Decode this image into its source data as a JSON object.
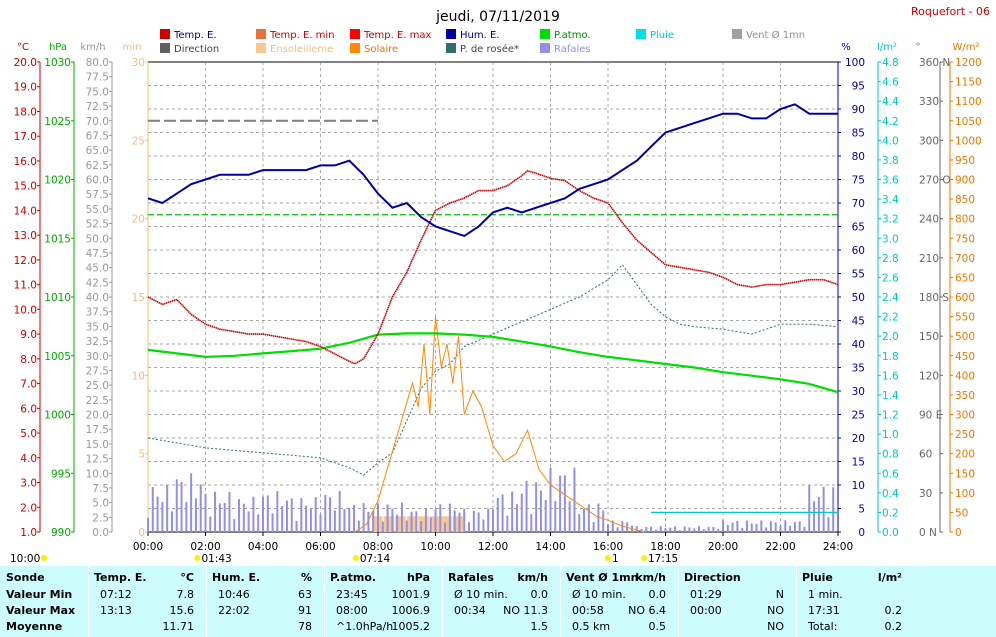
{
  "title": "jeudi, 07/11/2019",
  "station": "Roquefort - 06",
  "legend": [
    {
      "label": "Temp. E.",
      "color": "#cc0000"
    },
    {
      "label": "Temp. E. min",
      "color": "#e8703a"
    },
    {
      "label": "Temp. E. max",
      "color": "#ff0000"
    },
    {
      "label": "Hum. E.",
      "color": "#0000a0"
    },
    {
      "label": "P.atmo.",
      "color": "#00dd00"
    },
    {
      "label": "Pluie",
      "color": "#00e0e0"
    },
    {
      "label": "Vent Ø 1mn",
      "color": "#a0a0a0"
    },
    {
      "label": "Direction",
      "color": "#606060"
    },
    {
      "label": "Ensoleilleme",
      "color": "#f8c890"
    },
    {
      "label": "Solaire",
      "color": "#ff8800"
    },
    {
      "label": "P. de rosée*",
      "color": "#2e6e6e"
    },
    {
      "label": "Rafales",
      "color": "#9090e8"
    }
  ],
  "axis_units": {
    "temp": "°C",
    "pressure": "hPa",
    "wind": "km/h",
    "sun_min": "min",
    "hum": "%",
    "rain": "l/m²",
    "dir": "°",
    "solar": "W/m²"
  },
  "axis_ticks": {
    "temp": [
      "1.0",
      "2.0",
      "3.0",
      "4.0",
      "5.0",
      "6.0",
      "7.0",
      "8.0",
      "9.0",
      "10.0",
      "11.0",
      "12.0",
      "13.0",
      "14.0",
      "15.0",
      "16.0",
      "17.0",
      "18.0",
      "19.0",
      "20.0"
    ],
    "pressure": [
      "990",
      "995",
      "1000",
      "1005",
      "1010",
      "1015",
      "1020",
      "1025",
      "1030"
    ],
    "wind": [
      "0.0",
      "2.5",
      "5.0",
      "7.5",
      "10.0",
      "12.5",
      "15.0",
      "17.5",
      "20.0",
      "22.5",
      "25.0",
      "27.5",
      "30.0",
      "32.5",
      "35.0",
      "37.5",
      "40.0",
      "42.5",
      "45.0",
      "47.5",
      "50.0",
      "52.5",
      "55.0",
      "57.5",
      "60.0",
      "62.5",
      "65.0",
      "67.5",
      "70.0",
      "72.5",
      "75.0",
      "77.5",
      "80.0"
    ],
    "sun_min": [
      "0",
      "5",
      "10",
      "15",
      "20",
      "25",
      "30"
    ],
    "hum": [
      "0",
      "5",
      "10",
      "15",
      "20",
      "25",
      "30",
      "35",
      "40",
      "45",
      "50",
      "55",
      "60",
      "65",
      "70",
      "75",
      "80",
      "85",
      "90",
      "95",
      "100"
    ],
    "rain": [
      "0.0",
      "0.2",
      "0.4",
      "0.6",
      "0.8",
      "1.0",
      "1.2",
      "1.4",
      "1.6",
      "1.8",
      "2.0",
      "2.2",
      "2.4",
      "2.6",
      "2.8",
      "3.0",
      "3.2",
      "3.4",
      "3.6",
      "3.8",
      "4.0",
      "4.2",
      "4.4",
      "4.6",
      "4.8"
    ],
    "dir": [
      "0 N",
      "30",
      "60",
      "90 E",
      "120",
      "150",
      "180 S",
      "210",
      "240",
      "270 O",
      "300",
      "330",
      "360 N"
    ],
    "solar": [
      "0",
      "50",
      "100",
      "150",
      "200",
      "250",
      "300",
      "350",
      "400",
      "450",
      "500",
      "550",
      "600",
      "650",
      "700",
      "750",
      "800",
      "850",
      "900",
      "950",
      "1000",
      "1050",
      "1100",
      "1150",
      "1200"
    ]
  },
  "x_ticks": [
    "00:00",
    "02:00",
    "04:00",
    "06:00",
    "08:00",
    "10:00",
    "12:00",
    "14:00",
    "16:00",
    "18:00",
    "20:00",
    "22:00",
    "24:00"
  ],
  "sun_markers": [
    {
      "label": "10:00",
      "hour": null
    },
    {
      "label": "01:43",
      "hour": 1.72
    },
    {
      "label": "07:14",
      "hour": 7.23
    },
    {
      "label": "17:15",
      "hour": 17.25
    },
    {
      "label": "1",
      "hour": 16.0
    }
  ],
  "chart_data": {
    "type": "line",
    "xlim": [
      0,
      24
    ],
    "series": [
      {
        "name": "Temp. E.",
        "axis": "temp",
        "ylim": [
          1,
          20
        ],
        "x": [
          0,
          0.5,
          1,
          1.5,
          2,
          2.5,
          3,
          3.5,
          4,
          4.5,
          5,
          5.5,
          6,
          6.5,
          7,
          7.2,
          7.5,
          8,
          8.5,
          9,
          9.5,
          10,
          10.5,
          11,
          11.5,
          12,
          12.5,
          13,
          13.2,
          13.5,
          14,
          14.5,
          15,
          15.5,
          16,
          16.5,
          17,
          17.5,
          18,
          18.5,
          19,
          19.5,
          20,
          20.5,
          21,
          21.5,
          22,
          22.5,
          23,
          23.5,
          24
        ],
        "y": [
          10.5,
          10.2,
          10.4,
          9.8,
          9.4,
          9.2,
          9.1,
          9.0,
          9.0,
          8.9,
          8.8,
          8.7,
          8.5,
          8.2,
          7.9,
          7.8,
          8.0,
          9.0,
          10.5,
          11.5,
          12.8,
          14.0,
          14.3,
          14.5,
          14.8,
          14.8,
          15.0,
          15.4,
          15.6,
          15.5,
          15.3,
          15.2,
          14.8,
          14.5,
          14.3,
          13.5,
          12.8,
          12.3,
          11.8,
          11.7,
          11.6,
          11.5,
          11.3,
          11.0,
          10.9,
          11.0,
          11.0,
          11.1,
          11.2,
          11.2,
          11.0
        ]
      },
      {
        "name": "Hum. E.",
        "axis": "hum",
        "ylim": [
          0,
          100
        ],
        "x": [
          0,
          0.5,
          1,
          1.5,
          2,
          2.5,
          3,
          3.5,
          4,
          4.5,
          5,
          5.5,
          6,
          6.5,
          7,
          7.5,
          8,
          8.5,
          9,
          9.5,
          10,
          10.5,
          11,
          11.5,
          12,
          12.5,
          13,
          13.5,
          14,
          14.5,
          15,
          15.5,
          16,
          16.5,
          17,
          17.5,
          18,
          18.5,
          19,
          19.5,
          20,
          20.5,
          21,
          21.5,
          22,
          22.5,
          23,
          23.5,
          24
        ],
        "y": [
          71,
          70,
          72,
          74,
          75,
          76,
          76,
          76,
          77,
          77,
          77,
          77,
          78,
          78,
          79,
          76,
          72,
          69,
          70,
          67,
          65,
          64,
          63,
          65,
          68,
          69,
          68,
          69,
          70,
          71,
          73,
          74,
          75,
          77,
          79,
          82,
          85,
          86,
          87,
          88,
          89,
          89,
          88,
          88,
          90,
          91,
          89,
          89,
          89
        ]
      },
      {
        "name": "P.atmo.",
        "axis": "pressure",
        "ylim": [
          990,
          1030
        ],
        "x": [
          0,
          1,
          2,
          3,
          4,
          5,
          6,
          7,
          8,
          9,
          10,
          11,
          12,
          13,
          14,
          15,
          16,
          17,
          18,
          19,
          20,
          21,
          22,
          23,
          24
        ],
        "y": [
          1005.5,
          1005.2,
          1004.9,
          1005.0,
          1005.2,
          1005.4,
          1005.6,
          1006.1,
          1006.8,
          1006.9,
          1006.9,
          1006.8,
          1006.6,
          1006.2,
          1005.8,
          1005.3,
          1004.9,
          1004.6,
          1004.3,
          1004.0,
          1003.6,
          1003.3,
          1003.0,
          1002.6,
          1001.9
        ]
      },
      {
        "name": "P. de rosée*",
        "axis": "temp",
        "ylim": [
          1,
          20
        ],
        "x": [
          0,
          1,
          2,
          3,
          4,
          5,
          6,
          7,
          7.5,
          8,
          8.5,
          9,
          9.5,
          10,
          10.5,
          11,
          12,
          13,
          14,
          15,
          16,
          16.5,
          17,
          17.5,
          18,
          18.5,
          19,
          20,
          21,
          22,
          23,
          24
        ],
        "y": [
          4.8,
          4.6,
          4.4,
          4.3,
          4.2,
          4.1,
          4.0,
          3.6,
          3.3,
          3.8,
          4.2,
          5.5,
          6.8,
          7.5,
          7.8,
          8.5,
          9.0,
          9.5,
          10.0,
          10.5,
          11.2,
          11.8,
          11.0,
          10.2,
          9.7,
          9.4,
          9.3,
          9.2,
          9.0,
          9.4,
          9.4,
          9.3
        ]
      },
      {
        "name": "Solaire",
        "axis": "solar",
        "ylim": [
          0,
          1200
        ],
        "x": [
          7.2,
          7.6,
          8.0,
          8.4,
          8.8,
          9.2,
          9.4,
          9.6,
          9.8,
          10.0,
          10.2,
          10.4,
          10.6,
          10.8,
          11.0,
          11.3,
          11.6,
          12.0,
          12.4,
          12.8,
          13.2,
          13.6,
          14.0,
          14.4,
          14.8,
          15.2,
          15.6,
          16.0,
          16.5,
          17.0,
          17.25
        ],
        "y": [
          0,
          20,
          80,
          180,
          280,
          380,
          320,
          480,
          300,
          550,
          420,
          480,
          380,
          500,
          300,
          360,
          320,
          220,
          180,
          200,
          260,
          160,
          120,
          100,
          80,
          60,
          40,
          30,
          15,
          5,
          0
        ]
      },
      {
        "name": "Rafales",
        "axis": "wind",
        "ylim": [
          0,
          80
        ],
        "x": [
          0,
          1,
          2,
          3,
          4,
          5,
          6,
          7,
          8,
          9,
          10,
          11,
          12,
          13,
          14,
          15,
          16,
          17,
          18,
          19,
          20,
          21,
          22,
          23,
          24
        ],
        "y": [
          8,
          10,
          7,
          6,
          7,
          6,
          7,
          5,
          5,
          4,
          5,
          4,
          7,
          9,
          11,
          5,
          2,
          1,
          1,
          1,
          2,
          2,
          2,
          8,
          4
        ]
      },
      {
        "name": "Vent Ø 1mn",
        "axis": "wind",
        "ylim": [
          0,
          80
        ],
        "x": [
          0,
          1,
          2,
          3,
          4,
          5,
          6,
          7,
          8
        ],
        "y": [
          70,
          70,
          70,
          70,
          70,
          70,
          70,
          70,
          70
        ]
      },
      {
        "name": "Ensoleilleme",
        "axis": "sun_min",
        "ylim": [
          0,
          30
        ],
        "x": [
          7.8,
          8.2,
          8.6,
          9.0,
          9.4,
          9.8,
          10.2,
          10.6
        ],
        "y": [
          1,
          1,
          1,
          1,
          1,
          1,
          1,
          1
        ]
      },
      {
        "name": "Pluie",
        "axis": "rain",
        "ylim": [
          0,
          4.8
        ],
        "x": [
          17.5,
          18,
          20,
          22,
          24
        ],
        "y": [
          0.2,
          0.2,
          0.2,
          0.2,
          0.2
        ]
      }
    ],
    "hline": {
      "name": "P.atmo. ref",
      "axis": "pressure",
      "y": 1017
    }
  },
  "table": {
    "columns": [
      {
        "title": "Sonde",
        "rows": [
          "Valeur Min",
          "Valeur Max",
          "Moyenne"
        ]
      },
      {
        "title": "Temp. E.",
        "unit": "°C",
        "rows": [
          [
            "07:12",
            "7.8"
          ],
          [
            "13:13",
            "15.6"
          ],
          [
            "",
            "11.71"
          ]
        ]
      },
      {
        "title": "Hum. E.",
        "unit": "%",
        "rows": [
          [
            "10:46",
            "63"
          ],
          [
            "22:02",
            "91"
          ],
          [
            "",
            "78"
          ]
        ]
      },
      {
        "title": "P.atmo.",
        "unit": "hPa",
        "rows": [
          [
            "23:45",
            "1001.9"
          ],
          [
            "08:00",
            "1006.9"
          ],
          [
            "^1.0hPa/h",
            "1005.2"
          ]
        ]
      },
      {
        "title": "Rafales",
        "unit": "km/h",
        "rows": [
          [
            "Ø 10 min.",
            "0.0"
          ],
          [
            "00:34",
            "NO 11.3"
          ],
          [
            "",
            "1.5"
          ]
        ]
      },
      {
        "title": "Vent Ø 1mn",
        "unit": "km/h",
        "rows": [
          [
            "Ø 10 min.",
            "0.0"
          ],
          [
            "00:58",
            "NO 6.4"
          ],
          [
            "0.5 km",
            "0.5"
          ]
        ]
      },
      {
        "title": "Direction",
        "unit": "",
        "rows": [
          [
            "01:29",
            "N"
          ],
          [
            "00:00",
            "NO"
          ],
          [
            "",
            "NO"
          ]
        ]
      },
      {
        "title": "Pluie",
        "unit": "l/m²",
        "rows": [
          [
            "1 min.",
            ""
          ],
          [
            "17:31",
            "0.2"
          ],
          [
            "Total:",
            "0.2"
          ]
        ]
      }
    ]
  }
}
